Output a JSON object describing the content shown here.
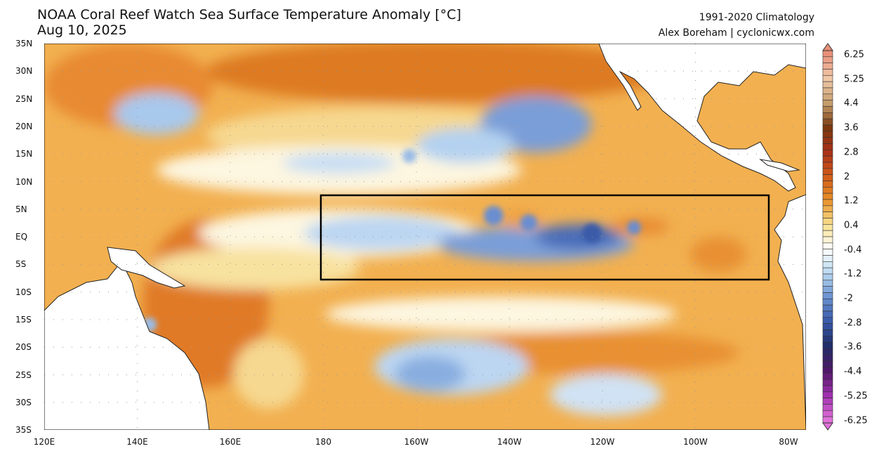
{
  "header": {
    "title": "NOAA Coral Reef Watch Sea Surface Temperature Anomaly [°C]",
    "date": "Aug 10, 2025",
    "climatology": "1991-2020 Climatology",
    "credit": "Alex Boreham | cyclonicwx.com"
  },
  "map": {
    "lat_labels": [
      "35N",
      "30N",
      "25N",
      "20N",
      "15N",
      "10N",
      "5N",
      "EQ",
      "5S",
      "10S",
      "15S",
      "20S",
      "25S",
      "30S",
      "35S"
    ],
    "lon_labels": [
      "120E",
      "140E",
      "160E",
      "180",
      "160W",
      "140W",
      "120W",
      "100W",
      "80W"
    ],
    "highlight_box": {
      "lon_range": [
        "180",
        "84W"
      ],
      "lat_range": [
        "7.5N",
        "7.5S"
      ]
    }
  },
  "colorbar": {
    "labels": [
      "6.25",
      "5.25",
      "4.4",
      "3.6",
      "2.8",
      "2",
      "1.2",
      "0.4",
      "-0.4",
      "-1.2",
      "-2",
      "-2.8",
      "-3.6",
      "-4.4",
      "-5.25",
      "-6.25"
    ],
    "stops": [
      "#e8907a",
      "#f0c8a8",
      "#c8a070",
      "#7a3a10",
      "#a83018",
      "#d05a18",
      "#e89028",
      "#f8e090",
      "#ffffff",
      "#b8d8f0",
      "#6890d0",
      "#3858a8",
      "#202c68",
      "#501868",
      "#a030b0",
      "#e070d8"
    ],
    "colors": {
      "warm": "#f0a040",
      "cool": "#88b0e0",
      "land": "#ffffff"
    }
  }
}
